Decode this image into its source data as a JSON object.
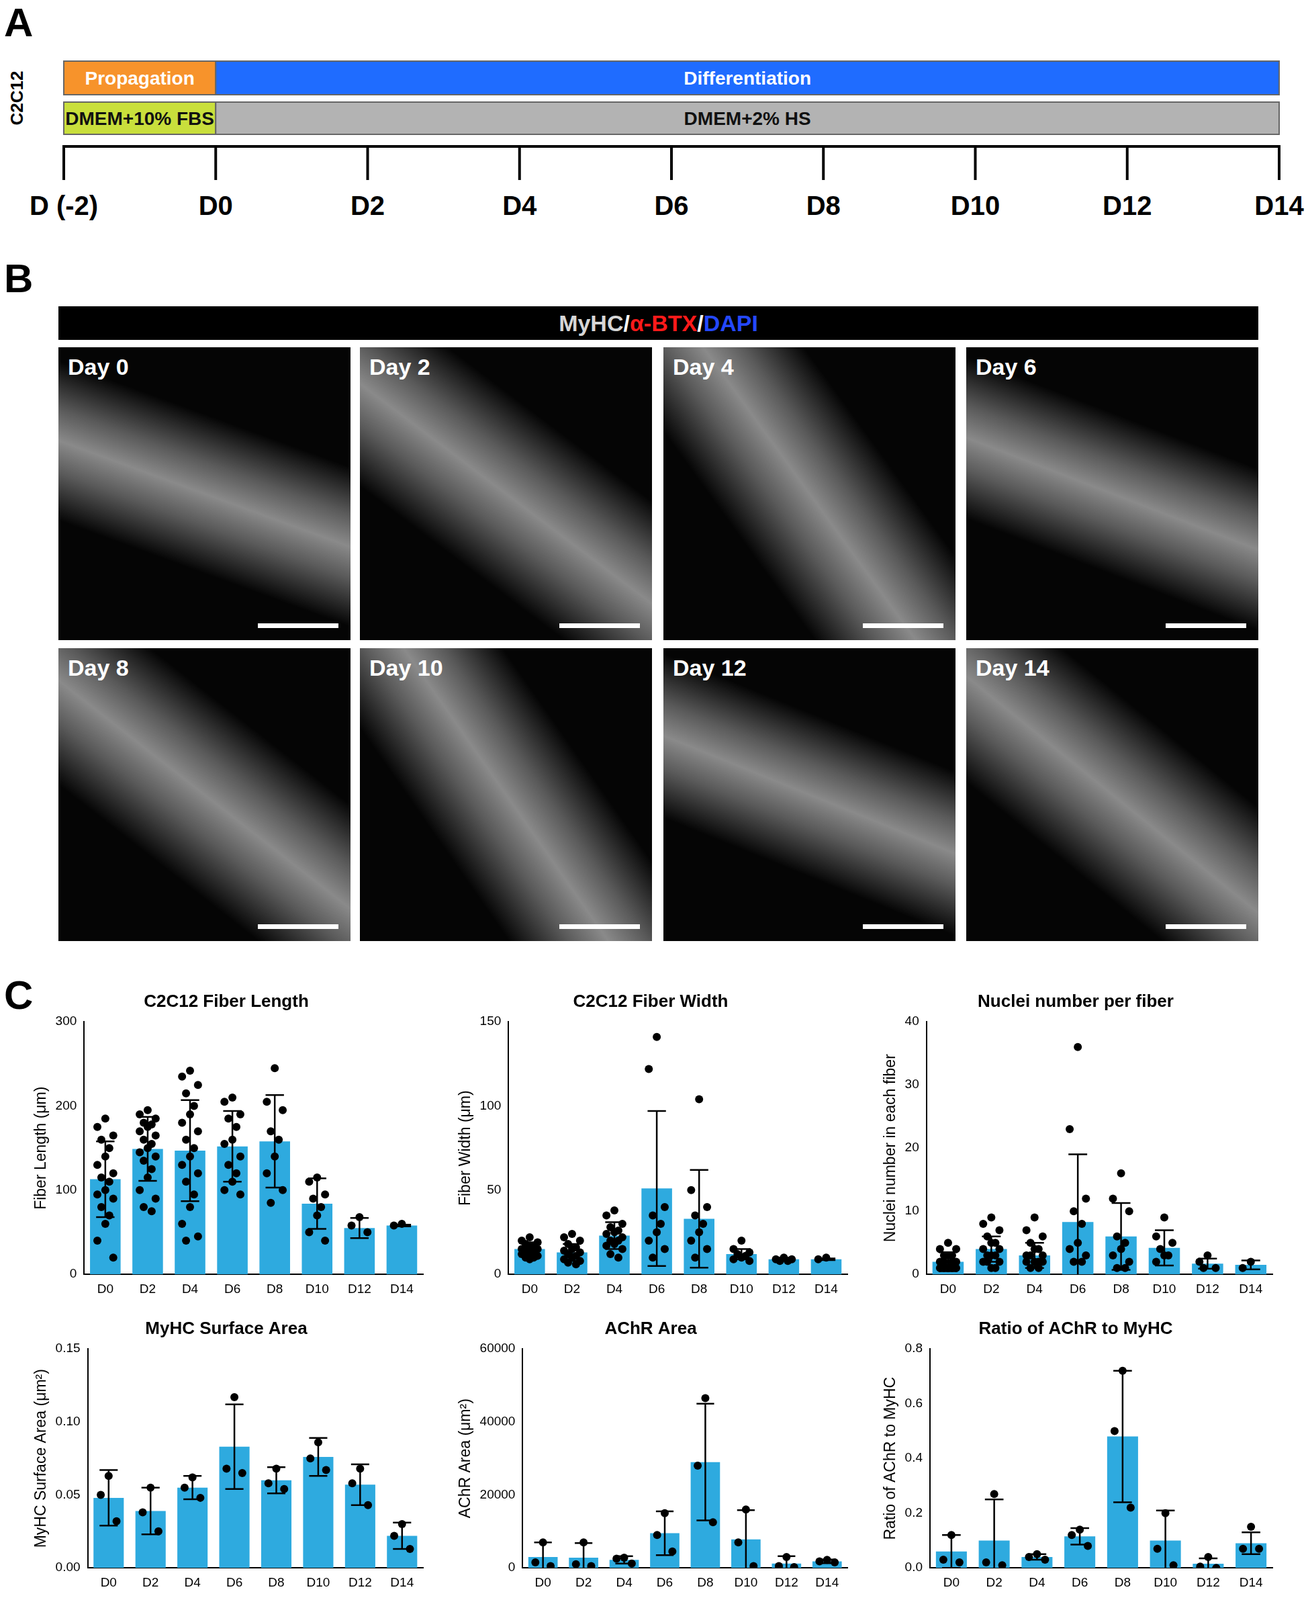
{
  "panels": {
    "A": {
      "label": "A",
      "row_label": "C2C12",
      "days": [
        -2,
        0,
        2,
        4,
        6,
        8,
        10,
        12,
        14
      ],
      "day_labels": [
        "D (-2)",
        "D0",
        "D2",
        "D4",
        "D6",
        "D8",
        "D10",
        "D12",
        "D14"
      ],
      "phases": [
        {
          "label": "Propagation",
          "start": -2,
          "end": 0,
          "color": "#f7932b"
        },
        {
          "label": "Differentiation",
          "start": 0,
          "end": 14,
          "color": "#1f6cff"
        }
      ],
      "media": [
        {
          "label": "DMEM+10% FBS",
          "start": -2,
          "end": 0,
          "color": "#c9df3c"
        },
        {
          "label": "DMEM+2% HS",
          "start": 0,
          "end": 14,
          "color": "#b3b3b3"
        }
      ]
    },
    "B": {
      "label": "B",
      "stains": [
        {
          "text": "MyHC",
          "color": "#d6d6d6"
        },
        {
          "text": "α-BTX",
          "color": "#ff1a1a"
        },
        {
          "text": "DAPI",
          "color": "#2448ff"
        }
      ],
      "separator": "/",
      "images": [
        "Day 0",
        "Day 2",
        "Day 4",
        "Day 6",
        "Day 8",
        "Day 10",
        "Day 12",
        "Day 14"
      ]
    },
    "C": {
      "label": "C"
    }
  },
  "chart_data": [
    {
      "type": "bar",
      "title": "C2C12 Fiber Length",
      "ylabel": "Fiber Length (μm)",
      "categories": [
        "D0",
        "D2",
        "D4",
        "D6",
        "D8",
        "D10",
        "D12",
        "D14"
      ],
      "values": [
        113,
        149,
        147,
        152,
        158,
        84,
        55,
        58
      ],
      "errors": [
        45,
        38,
        60,
        42,
        55,
        30,
        12,
        1
      ],
      "points": [
        [
          185,
          175,
          165,
          160,
          150,
          140,
          130,
          120,
          115,
          110,
          100,
          95,
          90,
          80,
          70,
          60,
          40,
          20
        ],
        [
          195,
          190,
          185,
          180,
          178,
          175,
          170,
          165,
          160,
          155,
          150,
          145,
          140,
          135,
          125,
          115,
          100,
          90,
          80,
          75
        ],
        [
          242,
          235,
          225,
          215,
          200,
          190,
          180,
          170,
          160,
          150,
          140,
          130,
          120,
          110,
          95,
          80,
          60,
          45,
          40
        ],
        [
          210,
          205,
          190,
          185,
          175,
          160,
          155,
          140,
          130,
          120,
          110,
          100,
          95
        ],
        [
          245,
          205,
          195,
          170,
          160,
          140,
          120,
          100,
          85
        ],
        [
          115,
          110,
          95,
          90,
          80,
          70,
          50,
          40
        ],
        [
          68,
          58,
          50
        ],
        [
          60,
          58
        ]
      ],
      "color": "#2eaadf",
      "ylim": [
        0,
        300
      ],
      "yticks": [
        0,
        100,
        200,
        300
      ],
      "grid": false
    },
    {
      "type": "bar",
      "title": "C2C12 Fiber Width",
      "ylabel": "Fiber Width (μm)",
      "categories": [
        "D0",
        "D2",
        "D4",
        "D6",
        "D8",
        "D10",
        "D12",
        "D14"
      ],
      "values": [
        15,
        13,
        23,
        51,
        33,
        12,
        9,
        9
      ],
      "errors": [
        4,
        5,
        8,
        46,
        29,
        3,
        1,
        0.5
      ],
      "points": [
        [
          22,
          20,
          19,
          18,
          17,
          16,
          15,
          15,
          14,
          13,
          13,
          12,
          11,
          10,
          10,
          9
        ],
        [
          24,
          22,
          20,
          18,
          16,
          15,
          14,
          13,
          12,
          11,
          10,
          9,
          8,
          7,
          6
        ],
        [
          38,
          35,
          30,
          28,
          26,
          25,
          24,
          22,
          20,
          20,
          18,
          17,
          15,
          12,
          10
        ],
        [
          141,
          122,
          40,
          35,
          30,
          25,
          20,
          15,
          10
        ],
        [
          104,
          50,
          40,
          35,
          30,
          25,
          20,
          15,
          10
        ],
        [
          20,
          15,
          13,
          12,
          11,
          10,
          9,
          8
        ],
        [
          10,
          9,
          9,
          8,
          8
        ],
        [
          10,
          9
        ]
      ],
      "color": "#2eaadf",
      "ylim": [
        0,
        150
      ],
      "yticks": [
        0,
        50,
        100,
        150
      ],
      "grid": false
    },
    {
      "type": "bar",
      "title": "Nuclei number per fiber",
      "ylabel": "Nuclei number in each fiber",
      "categories": [
        "D0",
        "D2",
        "D4",
        "D6",
        "D8",
        "D10",
        "D12",
        "D14"
      ],
      "values": [
        2,
        4,
        3,
        8.3,
        6,
        4.2,
        1.7,
        1.5
      ],
      "errors": [
        1.5,
        2,
        2,
        10.7,
        5.3,
        2.8,
        0.8,
        0.7
      ],
      "points": [
        [
          5,
          4,
          4,
          3,
          3,
          3,
          2,
          2,
          2,
          2,
          1,
          1,
          1,
          1,
          1,
          1
        ],
        [
          9,
          8,
          7,
          6,
          5,
          5,
          4,
          4,
          3,
          3,
          3,
          2,
          2,
          2,
          1,
          1
        ],
        [
          9,
          7,
          6,
          5,
          4,
          4,
          3,
          3,
          3,
          2,
          2,
          2,
          2,
          1,
          1
        ],
        [
          36,
          23,
          12,
          10,
          8,
          5,
          4,
          3,
          2,
          2
        ],
        [
          16,
          12,
          10,
          6,
          5,
          4,
          3,
          2,
          1,
          1
        ],
        [
          9,
          6,
          5,
          4,
          3,
          3,
          2
        ],
        [
          3,
          2,
          1,
          1
        ],
        [
          2,
          1
        ]
      ],
      "color": "#2eaadf",
      "ylim": [
        0,
        40
      ],
      "yticks": [
        0,
        10,
        20,
        30,
        40
      ],
      "grid": false
    },
    {
      "type": "bar",
      "title": "MyHC Surface Area",
      "ylabel": "MyHC Surface Area (μm²)",
      "categories": [
        "D0",
        "D2",
        "D4",
        "D6",
        "D8",
        "D10",
        "D12",
        "D14"
      ],
      "values": [
        0.048,
        0.039,
        0.055,
        0.083,
        0.06,
        0.076,
        0.057,
        0.022
      ],
      "errors": [
        0.019,
        0.016,
        0.008,
        0.029,
        0.009,
        0.013,
        0.014,
        0.009
      ],
      "points": [
        [
          0.063,
          0.05,
          0.032
        ],
        [
          0.055,
          0.038,
          0.025
        ],
        [
          0.062,
          0.055,
          0.048
        ],
        [
          0.117,
          0.068,
          0.065
        ],
        [
          0.068,
          0.058,
          0.054
        ],
        [
          0.086,
          0.075,
          0.067
        ],
        [
          0.068,
          0.058,
          0.043
        ],
        [
          0.03,
          0.022,
          0.013
        ]
      ],
      "color": "#2eaadf",
      "ylim": [
        0,
        0.15
      ],
      "yticks": [
        {
          "value": 0,
          "label": "0.00"
        },
        0.05,
        {
          "value": 0.1,
          "label": "0.10"
        },
        0.15
      ],
      "grid": false
    },
    {
      "type": "bar",
      "title": "AChR Area",
      "ylabel": "AChR Area (μm²)",
      "categories": [
        "D0",
        "D2",
        "D4",
        "D6",
        "D8",
        "D10",
        "D12",
        "D14"
      ],
      "values": [
        3000,
        2800,
        2200,
        9500,
        29000,
        7800,
        1200,
        1800
      ],
      "errors": [
        4000,
        4000,
        1000,
        6000,
        16000,
        8000,
        2000,
        500
      ],
      "points": [
        [
          7000,
          1500,
          500
        ],
        [
          7000,
          1000,
          500
        ],
        [
          2800,
          2500,
          1200
        ],
        [
          15000,
          9000,
          4500
        ],
        [
          46500,
          28000,
          12500
        ],
        [
          16000,
          7000,
          500
        ],
        [
          3000,
          500,
          200
        ],
        [
          2200,
          1800,
          1500
        ]
      ],
      "color": "#2eaadf",
      "ylim": [
        0,
        60000
      ],
      "yticks": [
        0,
        20000,
        40000,
        60000
      ],
      "grid": false
    },
    {
      "type": "bar",
      "title": "Ratio of AChR to MyHC",
      "ylabel": "Ratio of AChR to MyHC",
      "categories": [
        "D0",
        "D2",
        "D4",
        "D6",
        "D8",
        "D10",
        "D12",
        "D14"
      ],
      "values": [
        0.06,
        0.1,
        0.04,
        0.115,
        0.48,
        0.1,
        0.015,
        0.09
      ],
      "errors": [
        0.06,
        0.15,
        0.01,
        0.03,
        0.24,
        0.11,
        0.02,
        0.04
      ],
      "points": [
        [
          0.12,
          0.03,
          0.02
        ],
        [
          0.27,
          0.02,
          0.01
        ],
        [
          0.05,
          0.04,
          0.03
        ],
        [
          0.14,
          0.12,
          0.08
        ],
        [
          0.72,
          0.5,
          0.22
        ],
        [
          0.2,
          0.07,
          0.01
        ],
        [
          0.04,
          0.005,
          0.0
        ],
        [
          0.15,
          0.07,
          0.07
        ]
      ],
      "color": "#2eaadf",
      "ylim": [
        0,
        0.8
      ],
      "yticks": [
        {
          "value": 0,
          "label": "0.0"
        },
        0.2,
        0.4,
        0.6,
        0.8
      ],
      "grid": false
    }
  ]
}
